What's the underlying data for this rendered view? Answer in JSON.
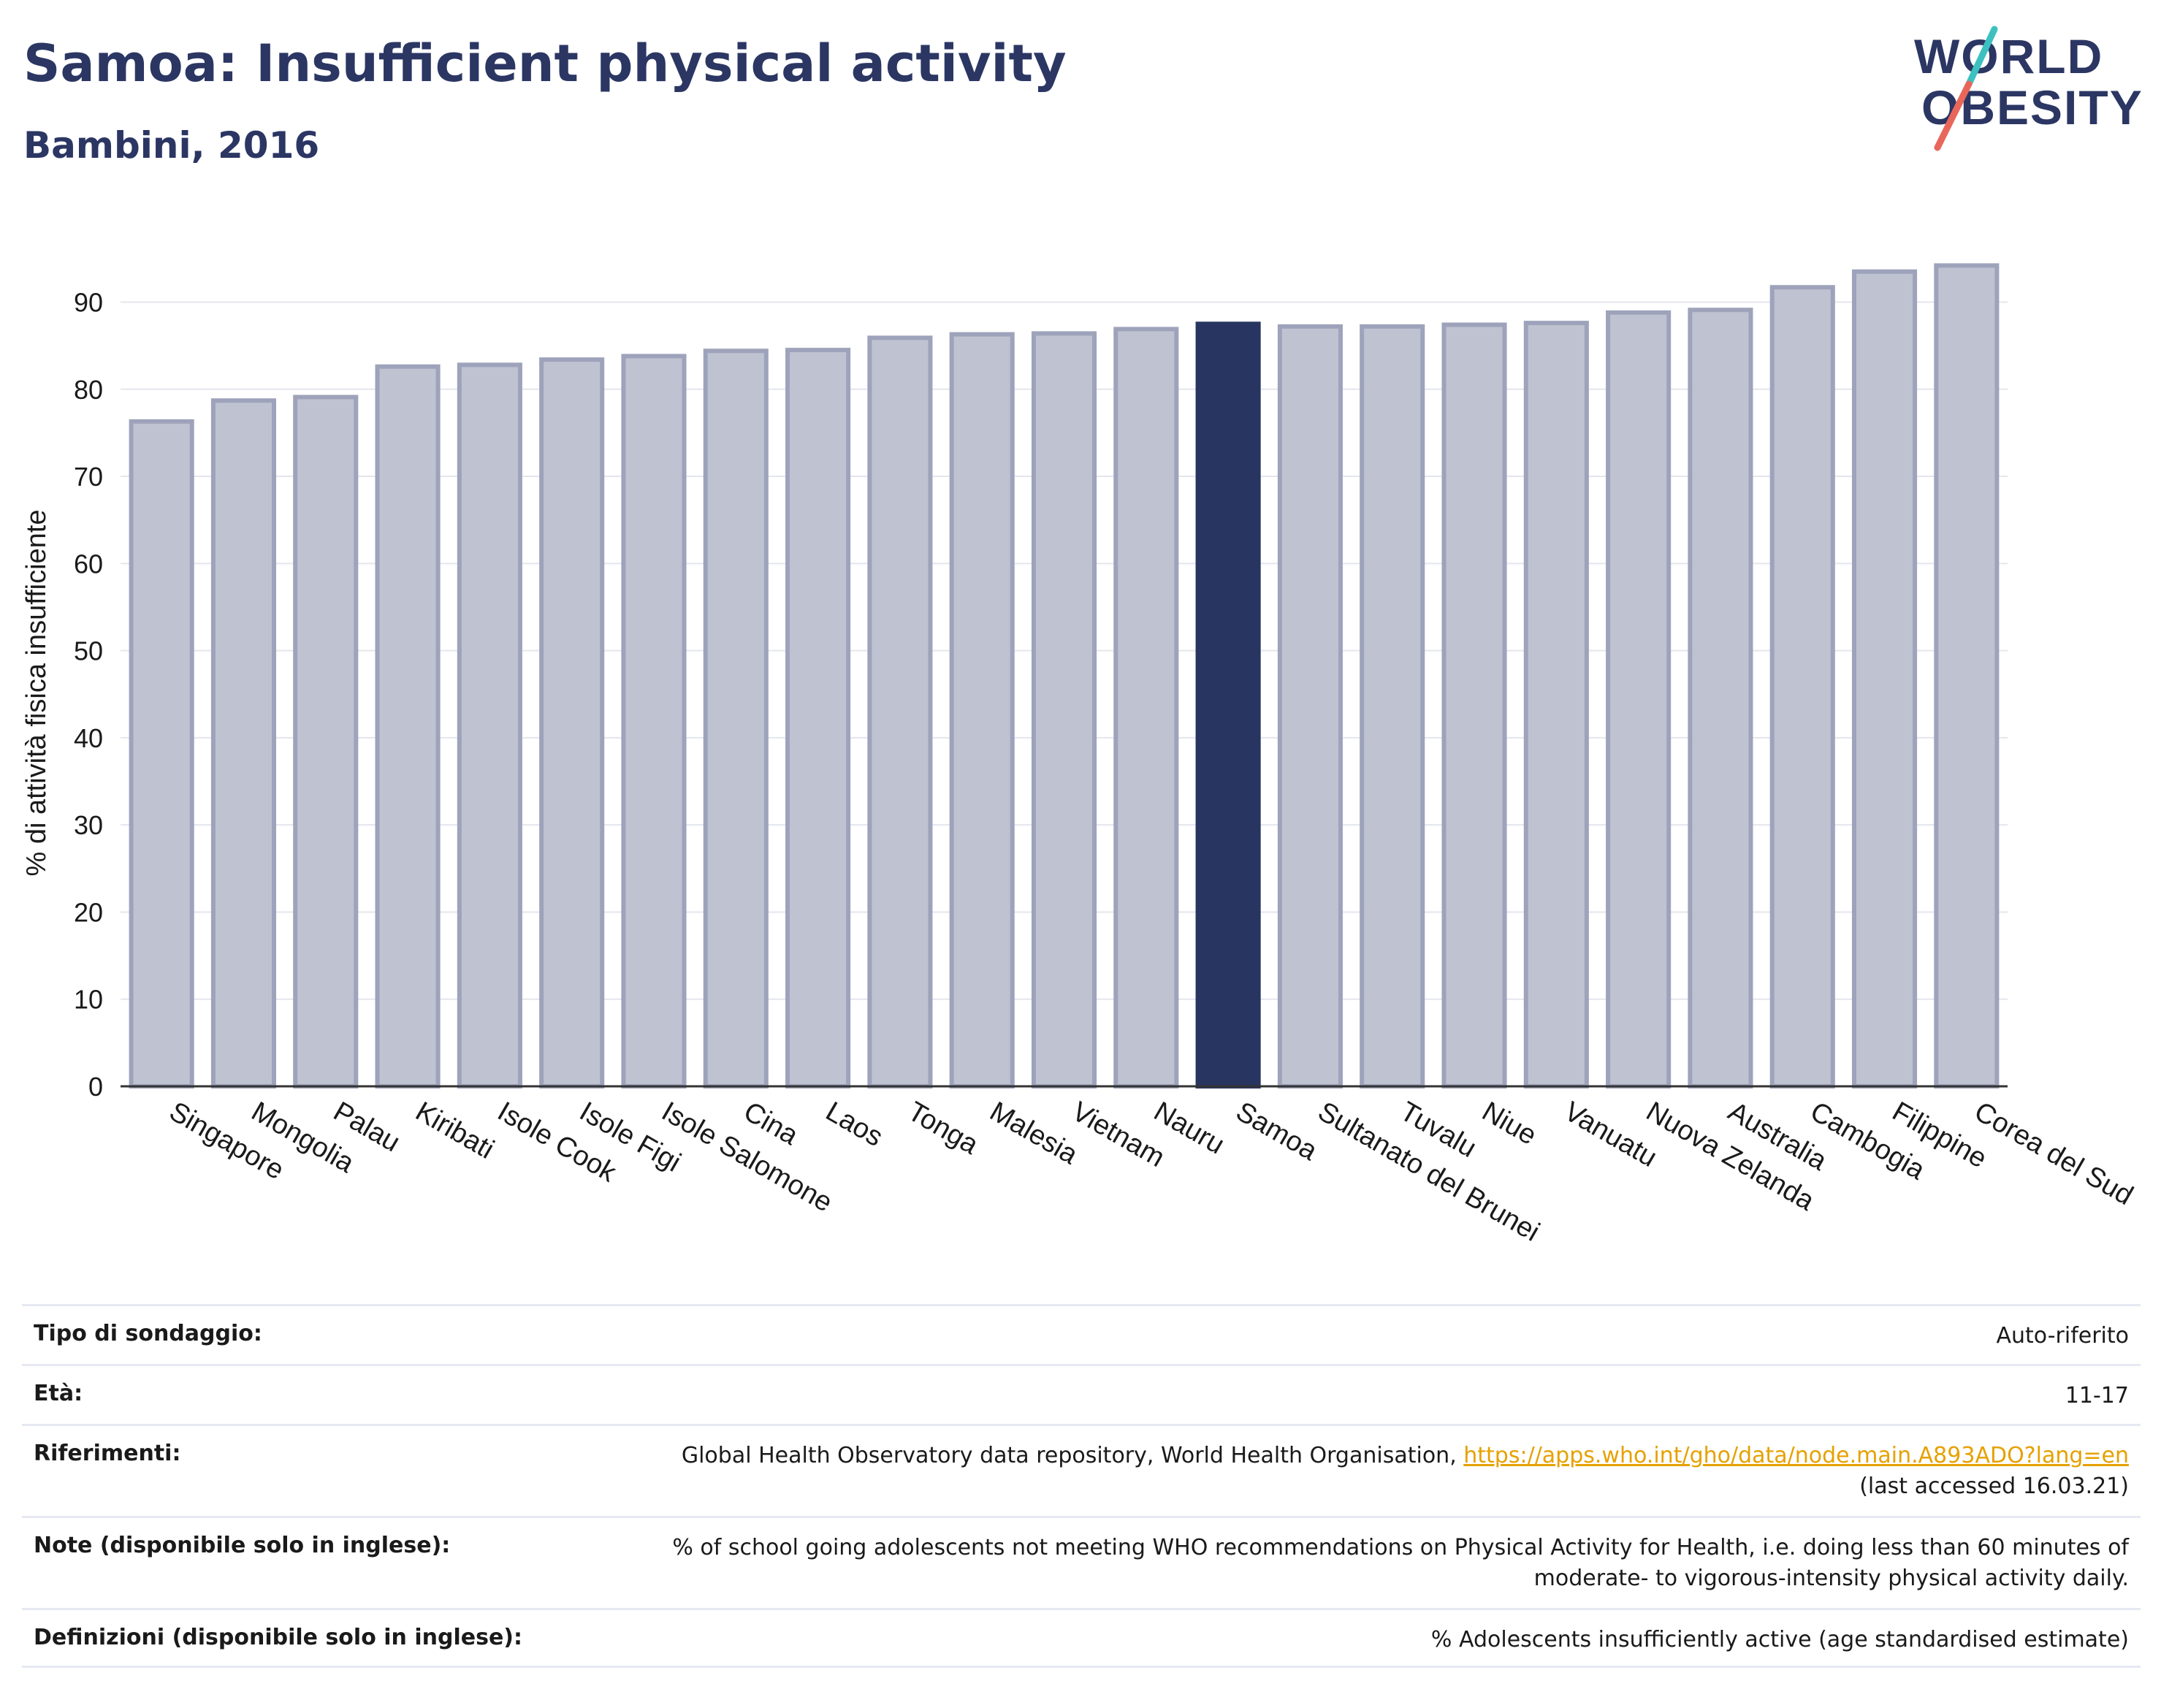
{
  "header": {
    "title": "Samoa: Insufficient physical activity",
    "subtitle": "Bambini, 2016"
  },
  "logo": {
    "line1": "WORLD",
    "line2": "OBESITY",
    "colors": {
      "text": "#2b3663",
      "slash_teal": "#3cc1c0",
      "slash_coral": "#e8675a"
    }
  },
  "colors": {
    "bar_fill": "#bfc2d0",
    "bar_stroke": "#9ea3bb",
    "highlight": "#283561",
    "grid": "#e4e6ee",
    "text": "#1a1a1a"
  },
  "chart_data": {
    "type": "bar",
    "title": "Samoa: Insufficient physical activity",
    "subtitle": "Bambini, 2016",
    "xlabel": "",
    "ylabel": "% di attività fisica insufficiente",
    "ylim": [
      0,
      97
    ],
    "yticks": [
      0,
      10,
      20,
      30,
      40,
      50,
      60,
      70,
      80,
      90
    ],
    "grid": true,
    "highlight_category": "Samoa",
    "categories": [
      "Singapore",
      "Mongolia",
      "Palau",
      "Kiribati",
      "Isole Cook",
      "Isole Figi",
      "Isole Salomone",
      "Cina",
      "Laos",
      "Tonga",
      "Malesia",
      "Vietnam",
      "Nauru",
      "Samoa",
      "Sultanato del Brunei",
      "Tuvalu",
      "Niue",
      "Vanuatu",
      "Nuova Zelanda",
      "Australia",
      "Cambogia",
      "Filippine",
      "Corea del Sud"
    ],
    "values": [
      76.3,
      78.7,
      79.1,
      82.6,
      82.8,
      83.4,
      83.8,
      84.4,
      84.5,
      85.9,
      86.3,
      86.4,
      86.9,
      87.5,
      87.2,
      87.2,
      87.4,
      87.6,
      88.8,
      89.1,
      91.7,
      93.5,
      94.2
    ]
  },
  "meta": [
    {
      "label": "Tipo di sondaggio:",
      "value": "Auto-riferito"
    },
    {
      "label": "Età:",
      "value": "11-17"
    },
    {
      "label": "Riferimenti:",
      "value": "Global Health Observatory data repository, World Health Organisation, ",
      "link": "https://apps.who.int/gho/data/node.main.A893ADO?lang=en",
      "value2": "(last accessed 16.03.21)"
    },
    {
      "label": "Note (disponibile solo in inglese):",
      "value": "% of school going adolescents not meeting WHO recommendations on Physical Activity for Health, i.e. doing less than 60 minutes of",
      "value2": "moderate- to vigorous-intensity physical activity daily."
    },
    {
      "label": "Definizioni (disponibile solo in inglese):",
      "value": "% Adolescents insufficiently active (age standardised estimate)"
    }
  ]
}
